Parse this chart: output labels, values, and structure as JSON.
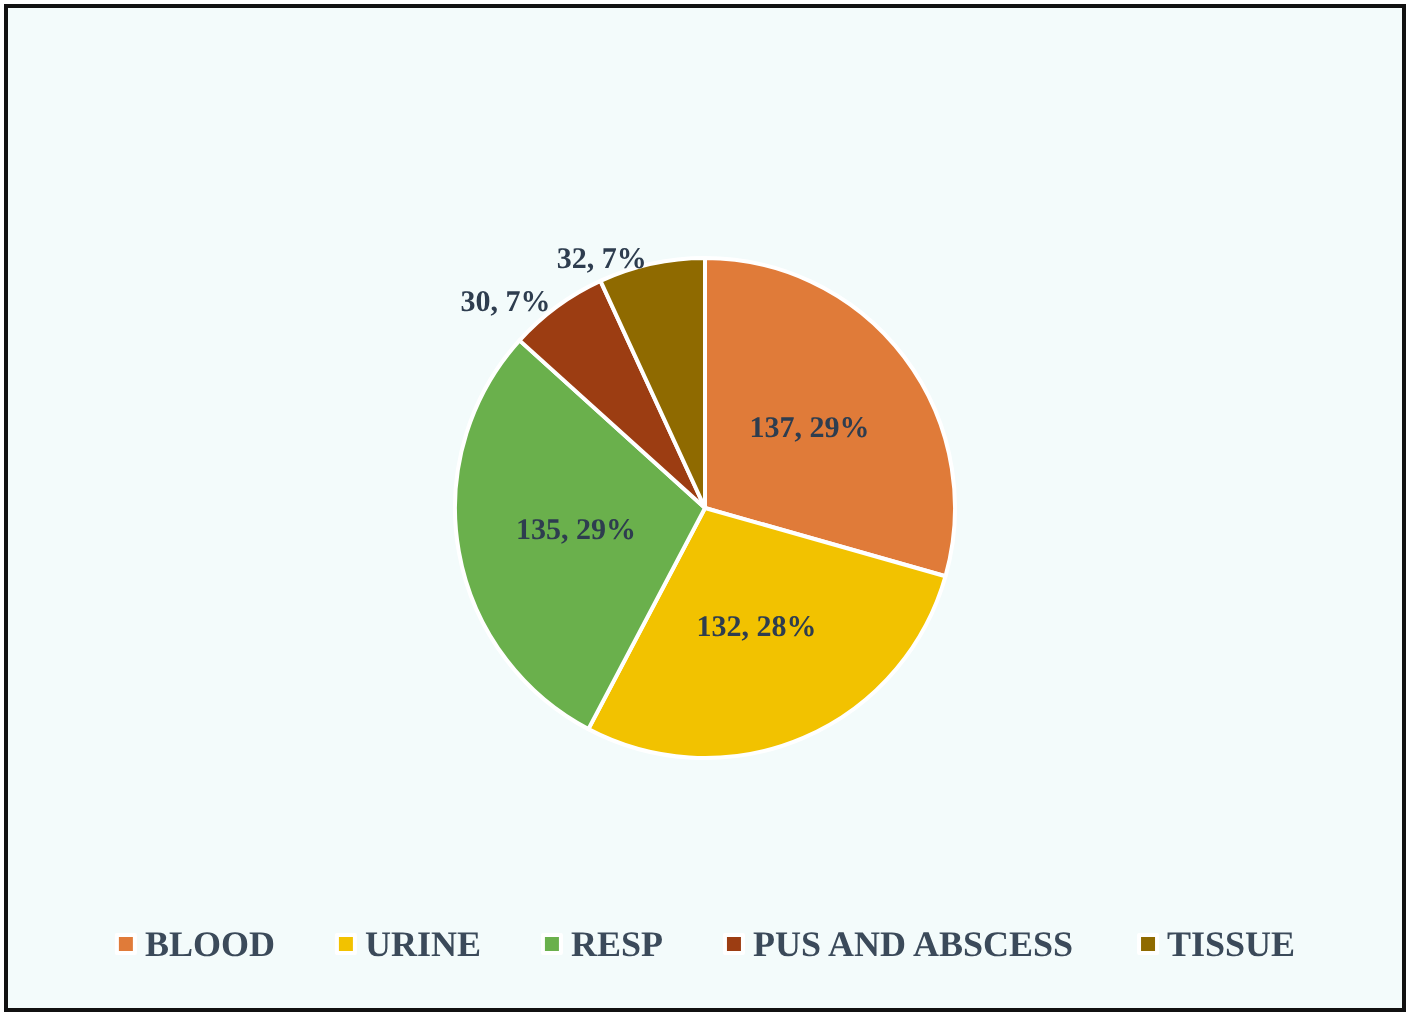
{
  "chart_data": {
    "type": "pie",
    "categories": [
      "BLOOD",
      "URINE",
      "RESP",
      "PUS AND ABSCESS",
      "TISSUE"
    ],
    "values": [
      137,
      132,
      135,
      30,
      32
    ],
    "colors": [
      "#e07b39",
      "#f2c200",
      "#6ab04c",
      "#9c3d12",
      "#8f6a00"
    ],
    "value_labels": [
      "137, 29%",
      "132, 28%",
      "135, 29%",
      "30, 7%",
      "32, 7%"
    ],
    "legend": "bottom"
  }
}
